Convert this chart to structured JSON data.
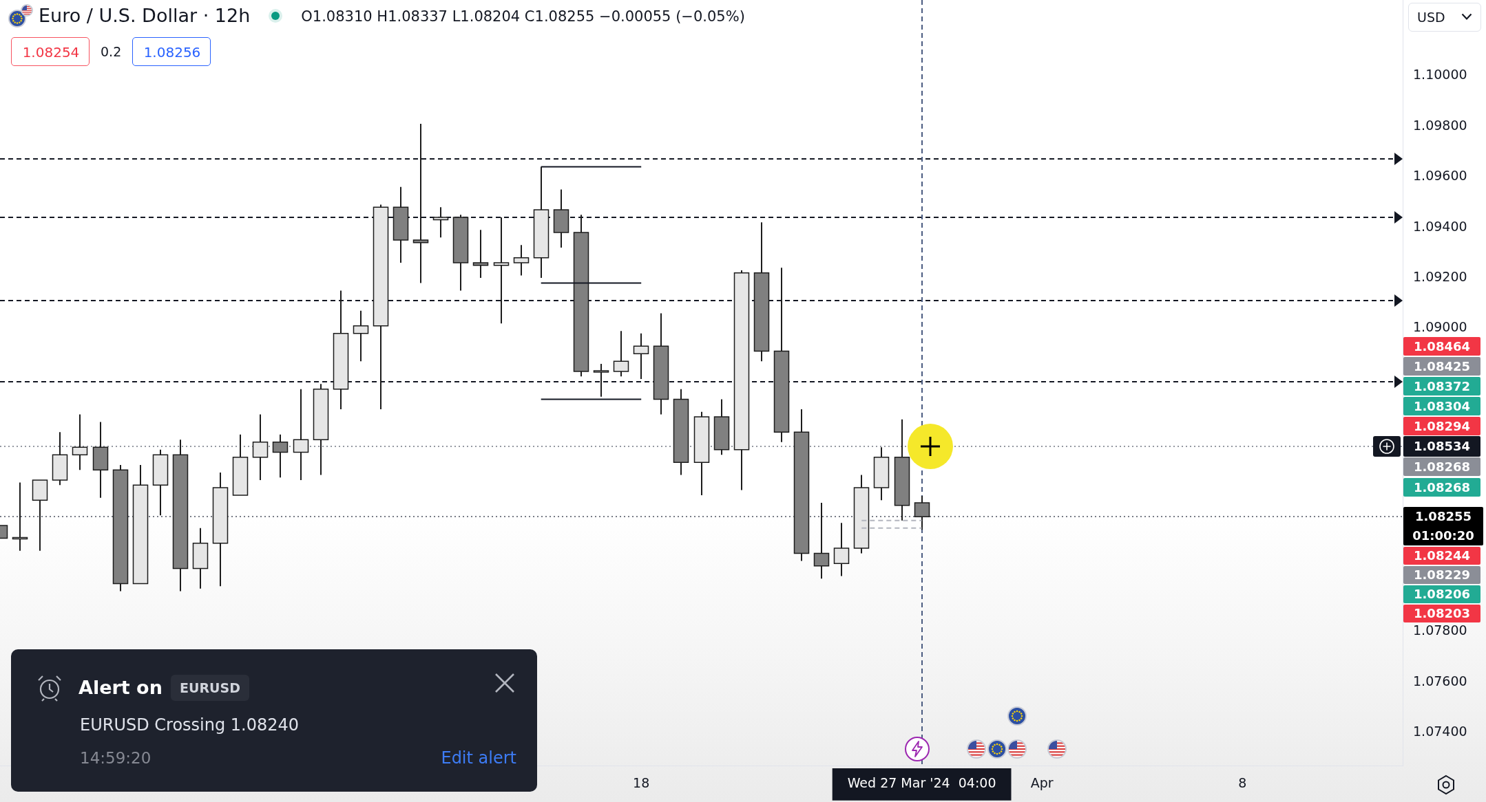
{
  "chart_data": {
    "type": "candlestick",
    "title": "Euro / U.S. Dollar · 12h",
    "subtitle": "O1.08310 H1.08337 L1.08204 C1.08255 −0.00055 (−0.05%)",
    "categories": [
      null,
      null,
      null,
      null,
      null,
      null,
      null,
      null,
      null,
      null,
      null,
      null,
      null,
      null,
      null,
      null,
      null,
      null,
      null,
      null,
      null,
      null,
      null,
      null,
      null,
      null,
      null,
      null,
      null,
      null,
      null,
      null,
      "18",
      null,
      null,
      null,
      null,
      null,
      null,
      null,
      null,
      null,
      null,
      null,
      null,
      null,
      "Wed 27 Mar '24  04:00",
      null,
      null,
      null,
      null,
      null,
      "Apr",
      null,
      null,
      null,
      null,
      null,
      null,
      null,
      null,
      null,
      "8",
      null,
      null,
      null,
      null,
      null,
      null,
      null,
      null
    ],
    "ohlc": [
      [
        1.0822,
        1.0822,
        1.0817,
        1.0817
      ],
      [
        1.0817,
        1.0839,
        1.0812,
        1.0817
      ],
      [
        1.0832,
        1.084,
        1.0812,
        1.084
      ],
      [
        1.084,
        1.0859,
        1.0838,
        1.085
      ],
      [
        1.085,
        1.0866,
        1.0844,
        1.0853
      ],
      [
        1.0853,
        1.0863,
        1.0833,
        1.0844
      ],
      [
        1.0844,
        1.0846,
        1.0796,
        1.0799
      ],
      [
        1.0799,
        1.0846,
        1.0799,
        1.0838
      ],
      [
        1.0838,
        1.0852,
        1.0826,
        1.085
      ],
      [
        1.085,
        1.0856,
        1.0796,
        1.0805
      ],
      [
        1.0805,
        1.0821,
        1.0797,
        1.0815
      ],
      [
        1.0815,
        1.0843,
        1.0798,
        1.0837
      ],
      [
        1.0834,
        1.0858,
        1.0834,
        1.0849
      ],
      [
        1.0849,
        1.0866,
        1.084,
        1.0855
      ],
      [
        1.0855,
        1.0858,
        1.0841,
        1.0851
      ],
      [
        1.0851,
        1.0876,
        1.084,
        1.0856
      ],
      [
        1.0856,
        1.0878,
        1.0842,
        1.0876
      ],
      [
        1.0876,
        1.0915,
        1.0868,
        1.0898
      ],
      [
        1.0898,
        1.0907,
        1.0887,
        1.0901
      ],
      [
        1.0901,
        1.0949,
        1.0868,
        1.0948
      ],
      [
        1.0948,
        1.0956,
        1.0926,
        1.0935
      ],
      [
        1.0935,
        1.0981,
        1.0918,
        1.0934
      ],
      [
        1.0943,
        1.0948,
        1.0936,
        1.0944
      ],
      [
        1.0944,
        1.0945,
        1.0915,
        1.0926
      ],
      [
        1.0926,
        1.0939,
        1.092,
        1.0925
      ],
      [
        1.0925,
        1.0944,
        1.0902,
        1.0926
      ],
      [
        1.0926,
        1.0933,
        1.0921,
        1.0928
      ],
      [
        1.0928,
        1.0964,
        1.092,
        1.0947
      ],
      [
        1.0947,
        1.0955,
        1.0932,
        1.0938
      ],
      [
        1.0938,
        1.0945,
        1.0881,
        1.0883
      ],
      [
        1.0883,
        1.0886,
        1.0873,
        1.0883
      ],
      [
        1.0883,
        1.0899,
        1.0881,
        1.0887
      ],
      [
        1.089,
        1.0898,
        1.088,
        1.0893
      ],
      [
        1.0893,
        1.0906,
        1.0866,
        1.0872
      ],
      [
        1.0872,
        1.0876,
        1.0842,
        1.0847
      ],
      [
        1.0847,
        1.0867,
        1.0834,
        1.0865
      ],
      [
        1.0865,
        1.0872,
        1.085,
        1.0852
      ],
      [
        1.0852,
        1.0923,
        1.0836,
        1.0922
      ],
      [
        1.0922,
        1.0942,
        1.0887,
        1.0891
      ],
      [
        1.0891,
        1.0924,
        1.0855,
        1.0859
      ],
      [
        1.0859,
        1.0868,
        1.0808,
        1.0811
      ],
      [
        1.0811,
        1.0831,
        1.0801,
        1.0806
      ],
      [
        1.0807,
        1.0823,
        1.0802,
        1.0813
      ],
      [
        1.0813,
        1.0842,
        1.0811,
        1.0837
      ],
      [
        1.0837,
        1.0853,
        1.0832,
        1.0849
      ],
      [
        1.0849,
        1.0864,
        1.0824,
        1.083
      ],
      [
        1.0831,
        1.08337,
        1.08204,
        1.08255
      ],
      null,
      null,
      null,
      null,
      null,
      null,
      null,
      null,
      null,
      null,
      null,
      null,
      null,
      null,
      null,
      null,
      null,
      null,
      null,
      null,
      null,
      null,
      null,
      null
    ],
    "colors": [
      "#808080",
      "#e6e6e6",
      "#e6e6e6",
      "#e6e6e6",
      "#e6e6e6",
      "#808080",
      "#808080",
      "#e6e6e6",
      "#e6e6e6",
      "#808080",
      "#e6e6e6",
      "#e6e6e6",
      "#e6e6e6",
      "#e6e6e6",
      "#808080",
      "#e6e6e6",
      "#e6e6e6",
      "#e6e6e6",
      "#e6e6e6",
      "#e6e6e6",
      "#808080",
      "#808080",
      "#e6e6e6",
      "#808080",
      "#808080",
      "#e6e6e6",
      "#e6e6e6",
      "#e6e6e6",
      "#808080",
      "#808080",
      "#e6e6e6",
      "#e6e6e6",
      "#e6e6e6",
      "#808080",
      "#808080",
      "#e6e6e6",
      "#808080",
      "#e6e6e6",
      "#808080",
      "#808080",
      "#808080",
      "#808080",
      "#e6e6e6",
      "#e6e6e6",
      "#e6e6e6",
      "#808080",
      "#808080",
      null,
      null,
      null,
      null,
      null,
      null,
      null,
      null,
      null,
      null,
      null,
      null,
      null,
      null,
      null,
      null,
      null,
      null,
      null,
      null,
      null,
      null,
      null,
      null
    ],
    "series": [
      {
        "type": "line",
        "color": "#131722",
        "line_style": "solid",
        "values": [
          null,
          null,
          null,
          null,
          null,
          null,
          null,
          null,
          null,
          null,
          null,
          null,
          null,
          null,
          null,
          null,
          null,
          null,
          null,
          null,
          null,
          null,
          null,
          null,
          null,
          null,
          null,
          1.0964,
          1.0964,
          1.0964,
          1.0964,
          1.0964,
          1.0964,
          null,
          null,
          null,
          null,
          null,
          null,
          null,
          null,
          null,
          null,
          null,
          null,
          null,
          null,
          null,
          null,
          null,
          null,
          null,
          null,
          null,
          null,
          null,
          null,
          null,
          null,
          null,
          null,
          null,
          null,
          null,
          null,
          null,
          null,
          null,
          null,
          null,
          null
        ]
      },
      {
        "type": "line",
        "color": "#131722",
        "line_style": "solid",
        "values": [
          null,
          null,
          null,
          null,
          null,
          null,
          null,
          null,
          null,
          null,
          null,
          null,
          null,
          null,
          null,
          null,
          null,
          null,
          null,
          null,
          null,
          null,
          null,
          null,
          null,
          null,
          null,
          1.0918,
          1.0918,
          1.0918,
          1.0918,
          1.0918,
          1.0918,
          null,
          null,
          null,
          null,
          null,
          null,
          null,
          null,
          null,
          null,
          null,
          null,
          null,
          null,
          null,
          null,
          null,
          null,
          null,
          null,
          null,
          null,
          null,
          null,
          null,
          null,
          null,
          null,
          null,
          null,
          null,
          null,
          null,
          null,
          null,
          null,
          null,
          null
        ]
      },
      {
        "type": "line",
        "color": "#131722",
        "line_style": "solid",
        "values": [
          null,
          null,
          null,
          null,
          null,
          null,
          null,
          null,
          null,
          null,
          null,
          null,
          null,
          null,
          null,
          null,
          null,
          null,
          null,
          null,
          null,
          null,
          null,
          null,
          null,
          null,
          null,
          1.0872,
          1.0872,
          1.0872,
          1.0872,
          1.0872,
          1.0872,
          null,
          null,
          null,
          null,
          null,
          null,
          null,
          null,
          null,
          null,
          null,
          null,
          null,
          null,
          null,
          null,
          null,
          null,
          null,
          null,
          null,
          null,
          null,
          null,
          null,
          null,
          null,
          null,
          null,
          null,
          null,
          null,
          null,
          null,
          null,
          null,
          null,
          null
        ]
      },
      {
        "type": "line",
        "color": "#b2b5be",
        "line_style": "dashed",
        "values": [
          null,
          null,
          null,
          null,
          null,
          null,
          null,
          null,
          null,
          null,
          null,
          null,
          null,
          null,
          null,
          null,
          null,
          null,
          null,
          null,
          null,
          null,
          null,
          null,
          null,
          null,
          null,
          null,
          null,
          null,
          null,
          null,
          null,
          null,
          null,
          null,
          null,
          null,
          null,
          null,
          null,
          null,
          null,
          1.0824,
          1.0824,
          1.0824,
          1.0824,
          null,
          null,
          null,
          null,
          null,
          null,
          null,
          null,
          null,
          null,
          null,
          null,
          null,
          null,
          null,
          null,
          null,
          null,
          null,
          null,
          null,
          null,
          null,
          null
        ]
      },
      {
        "type": "line",
        "color": "#b2b5be",
        "line_style": "dashed",
        "values": [
          null,
          null,
          null,
          null,
          null,
          null,
          null,
          null,
          null,
          null,
          null,
          null,
          null,
          null,
          null,
          null,
          null,
          null,
          null,
          null,
          null,
          null,
          null,
          null,
          null,
          null,
          null,
          null,
          null,
          null,
          null,
          null,
          null,
          null,
          null,
          null,
          null,
          null,
          null,
          null,
          null,
          null,
          null,
          1.0821,
          1.0821,
          1.0821,
          1.0821,
          null,
          null,
          null,
          null,
          null,
          null,
          null,
          null,
          null,
          null,
          null,
          null,
          null,
          null,
          null,
          null,
          null,
          null,
          null,
          null,
          null,
          null,
          null,
          null
        ]
      }
    ],
    "ylim": [
      1.0727,
      1.103
    ],
    "yticks": [
      {
        "value": 1.074,
        "label": "1.07400"
      },
      {
        "value": 1.076,
        "label": "1.07600"
      },
      {
        "value": 1.078,
        "label": "1.07800"
      },
      {
        "value": 1.09,
        "label": "1.09000"
      },
      {
        "value": 1.092,
        "label": "1.09200"
      },
      {
        "value": 1.094,
        "label": "1.09400"
      },
      {
        "value": 1.096,
        "label": "1.09600"
      },
      {
        "value": 1.098,
        "label": "1.09800"
      },
      {
        "value": 1.1,
        "label": "1.10000"
      }
    ],
    "ref_lines": [
      {
        "axis": "y",
        "value": 1.0967,
        "color": "#131722",
        "line_style": "dashed"
      },
      {
        "axis": "y",
        "value": 1.0944,
        "color": "#131722",
        "line_style": "dashed"
      },
      {
        "axis": "y",
        "value": 1.0911,
        "color": "#131722",
        "line_style": "dashed"
      },
      {
        "axis": "y",
        "value": 1.0879,
        "color": "#131722",
        "line_style": "dashed"
      },
      {
        "axis": "y",
        "value": 1.08534,
        "label": "1.08534",
        "color": "#9598a1",
        "line_style": "dotted"
      },
      {
        "axis": "y",
        "value": 1.08255,
        "label": "1.08255",
        "color": "#787b86",
        "line_style": "dotted"
      },
      {
        "axis": "x",
        "value": "Wed 27 Mar '24  04:00",
        "color": "#4a5b80",
        "line_style": "dashed"
      }
    ],
    "annotations": [
      "1.08254",
      "0.2",
      "1.08256",
      "USD",
      "1.08464",
      "1.08425",
      "1.08372",
      "1.08304",
      "1.08294",
      "1.08268",
      "1.08268",
      "01:00:20",
      "1.08244",
      "1.08229",
      "1.08206",
      "1.08203",
      "Alert on",
      "EURUSD",
      "EURUSD Crossing 1.08240",
      "14:59:20",
      "Edit alert"
    ]
  }
}
